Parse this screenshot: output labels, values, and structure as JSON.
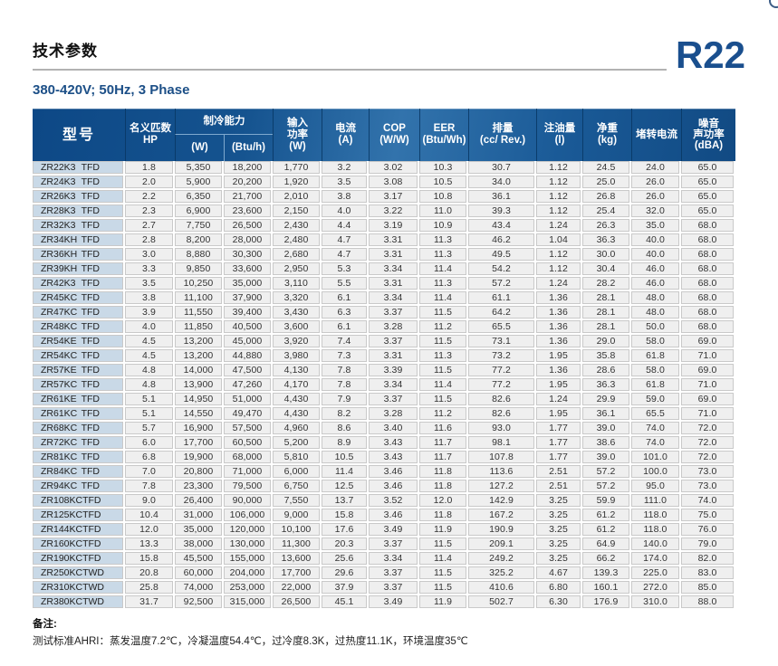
{
  "page": {
    "title": "技术参数",
    "refrigerant": "R22",
    "subtitle": "380-420V; 50Hz, 3 Phase"
  },
  "colors": {
    "header_blue": "#12518e",
    "accent_blue": "#1a4f8e",
    "model_column_bg": "#c9d9e7",
    "row_bg": "#efefef"
  },
  "table": {
    "headers": {
      "model": "型号",
      "hp_line1": "名义匹数",
      "hp_line2": "HP",
      "cooling_group": "制冷能力",
      "cooling_w": "(W)",
      "cooling_btuh": "(Btu/h)",
      "input_line1": "输入",
      "input_line2": "功率",
      "input_line3": "(W)",
      "current_line1": "电流",
      "current_line2": "(A)",
      "cop_line1": "COP",
      "cop_line2": "(W/W)",
      "eer_line1": "EER",
      "eer_line2": "(Btu/Wh)",
      "displacement_line1": "排量",
      "displacement_line2": "(cc/ Rev.)",
      "oil_line1": "注油量",
      "oil_line2": "(l)",
      "weight_line1": "净重",
      "weight_line2": "(kg)",
      "locked_rotor": "堵转电流",
      "noise_line1": "噪音",
      "noise_line2": "声功率",
      "noise_line3": "(dBA)"
    },
    "rows": [
      {
        "model": "ZR22K3",
        "type": "TFD",
        "values": [
          "1.8",
          "5,350",
          "18,200",
          "1,770",
          "3.2",
          "3.02",
          "10.3",
          "30.7",
          "1.12",
          "24.5",
          "24.0",
          "65.0"
        ]
      },
      {
        "model": "ZR24K3",
        "type": "TFD",
        "values": [
          "2.0",
          "5,900",
          "20,200",
          "1,920",
          "3.5",
          "3.08",
          "10.5",
          "34.0",
          "1.12",
          "25.0",
          "26.0",
          "65.0"
        ]
      },
      {
        "model": "ZR26K3",
        "type": "TFD",
        "values": [
          "2.2",
          "6,350",
          "21,700",
          "2,010",
          "3.8",
          "3.17",
          "10.8",
          "36.1",
          "1.12",
          "26.8",
          "26.0",
          "65.0"
        ]
      },
      {
        "model": "ZR28K3",
        "type": "TFD",
        "values": [
          "2.3",
          "6,900",
          "23,600",
          "2,150",
          "4.0",
          "3.22",
          "11.0",
          "39.3",
          "1.12",
          "25.4",
          "32.0",
          "65.0"
        ]
      },
      {
        "model": "ZR32K3",
        "type": "TFD",
        "values": [
          "2.7",
          "7,750",
          "26,500",
          "2,430",
          "4.4",
          "3.19",
          "10.9",
          "43.4",
          "1.24",
          "26.3",
          "35.0",
          "68.0"
        ]
      },
      {
        "model": "ZR34KH",
        "type": "TFD",
        "values": [
          "2.8",
          "8,200",
          "28,000",
          "2,480",
          "4.7",
          "3.31",
          "11.3",
          "46.2",
          "1.04",
          "36.3",
          "40.0",
          "68.0"
        ]
      },
      {
        "model": "ZR36KH",
        "type": "TFD",
        "values": [
          "3.0",
          "8,880",
          "30,300",
          "2,680",
          "4.7",
          "3.31",
          "11.3",
          "49.5",
          "1.12",
          "30.0",
          "40.0",
          "68.0"
        ]
      },
      {
        "model": "ZR39KH",
        "type": "TFD",
        "values": [
          "3.3",
          "9,850",
          "33,600",
          "2,950",
          "5.3",
          "3.34",
          "11.4",
          "54.2",
          "1.12",
          "30.4",
          "46.0",
          "68.0"
        ]
      },
      {
        "model": "ZR42K3",
        "type": "TFD",
        "values": [
          "3.5",
          "10,250",
          "35,000",
          "3,110",
          "5.5",
          "3.31",
          "11.3",
          "57.2",
          "1.24",
          "28.2",
          "46.0",
          "68.0"
        ]
      },
      {
        "model": "ZR45KC",
        "type": "TFD",
        "values": [
          "3.8",
          "11,100",
          "37,900",
          "3,320",
          "6.1",
          "3.34",
          "11.4",
          "61.1",
          "1.36",
          "28.1",
          "48.0",
          "68.0"
        ]
      },
      {
        "model": "ZR47KC",
        "type": "TFD",
        "values": [
          "3.9",
          "11,550",
          "39,400",
          "3,430",
          "6.3",
          "3.37",
          "11.5",
          "64.2",
          "1.36",
          "28.1",
          "48.0",
          "68.0"
        ]
      },
      {
        "model": "ZR48KC",
        "type": "TFD",
        "values": [
          "4.0",
          "11,850",
          "40,500",
          "3,600",
          "6.1",
          "3.28",
          "11.2",
          "65.5",
          "1.36",
          "28.1",
          "50.0",
          "68.0"
        ]
      },
      {
        "model": "ZR54KE",
        "type": "TFD",
        "values": [
          "4.5",
          "13,200",
          "45,000",
          "3,920",
          "7.4",
          "3.37",
          "11.5",
          "73.1",
          "1.36",
          "29.0",
          "58.0",
          "69.0"
        ]
      },
      {
        "model": "ZR54KC",
        "type": "TFD",
        "values": [
          "4.5",
          "13,200",
          "44,880",
          "3,980",
          "7.3",
          "3.31",
          "11.3",
          "73.2",
          "1.95",
          "35.8",
          "61.8",
          "71.0"
        ]
      },
      {
        "model": "ZR57KE",
        "type": "TFD",
        "values": [
          "4.8",
          "14,000",
          "47,500",
          "4,130",
          "7.8",
          "3.39",
          "11.5",
          "77.2",
          "1.36",
          "28.6",
          "58.0",
          "69.0"
        ]
      },
      {
        "model": "ZR57KC",
        "type": "TFD",
        "values": [
          "4.8",
          "13,900",
          "47,260",
          "4,170",
          "7.8",
          "3.34",
          "11.4",
          "77.2",
          "1.95",
          "36.3",
          "61.8",
          "71.0"
        ]
      },
      {
        "model": "ZR61KE",
        "type": "TFD",
        "values": [
          "5.1",
          "14,950",
          "51,000",
          "4,430",
          "7.9",
          "3.37",
          "11.5",
          "82.6",
          "1.24",
          "29.9",
          "59.0",
          "69.0"
        ]
      },
      {
        "model": "ZR61KC",
        "type": "TFD",
        "values": [
          "5.1",
          "14,550",
          "49,470",
          "4,430",
          "8.2",
          "3.28",
          "11.2",
          "82.6",
          "1.95",
          "36.1",
          "65.5",
          "71.0"
        ]
      },
      {
        "model": "ZR68KC",
        "type": "TFD",
        "values": [
          "5.7",
          "16,900",
          "57,500",
          "4,960",
          "8.6",
          "3.40",
          "11.6",
          "93.0",
          "1.77",
          "39.0",
          "74.0",
          "72.0"
        ]
      },
      {
        "model": "ZR72KC",
        "type": "TFD",
        "values": [
          "6.0",
          "17,700",
          "60,500",
          "5,200",
          "8.9",
          "3.43",
          "11.7",
          "98.1",
          "1.77",
          "38.6",
          "74.0",
          "72.0"
        ]
      },
      {
        "model": "ZR81KC",
        "type": "TFD",
        "values": [
          "6.8",
          "19,900",
          "68,000",
          "5,810",
          "10.5",
          "3.43",
          "11.7",
          "107.8",
          "1.77",
          "39.0",
          "101.0",
          "72.0"
        ]
      },
      {
        "model": "ZR84KC",
        "type": "TFD",
        "values": [
          "7.0",
          "20,800",
          "71,000",
          "6,000",
          "11.4",
          "3.46",
          "11.8",
          "113.6",
          "2.51",
          "57.2",
          "100.0",
          "73.0"
        ]
      },
      {
        "model": "ZR94KC",
        "type": "TFD",
        "values": [
          "7.8",
          "23,300",
          "79,500",
          "6,750",
          "12.5",
          "3.46",
          "11.8",
          "127.2",
          "2.51",
          "57.2",
          "95.0",
          "73.0"
        ]
      },
      {
        "model": "ZR108KC",
        "type": "TFD",
        "values": [
          "9.0",
          "26,400",
          "90,000",
          "7,550",
          "13.7",
          "3.52",
          "12.0",
          "142.9",
          "3.25",
          "59.9",
          "111.0",
          "74.0"
        ]
      },
      {
        "model": "ZR125KC",
        "type": "TFD",
        "values": [
          "10.4",
          "31,000",
          "106,000",
          "9,000",
          "15.8",
          "3.46",
          "11.8",
          "167.2",
          "3.25",
          "61.2",
          "118.0",
          "75.0"
        ]
      },
      {
        "model": "ZR144KC",
        "type": "TFD",
        "values": [
          "12.0",
          "35,000",
          "120,000",
          "10,100",
          "17.6",
          "3.49",
          "11.9",
          "190.9",
          "3.25",
          "61.2",
          "118.0",
          "76.0"
        ]
      },
      {
        "model": "ZR160KC",
        "type": "TFD",
        "values": [
          "13.3",
          "38,000",
          "130,000",
          "11,300",
          "20.3",
          "3.37",
          "11.5",
          "209.1",
          "3.25",
          "64.9",
          "140.0",
          "79.0"
        ]
      },
      {
        "model": "ZR190KC",
        "type": "TFD",
        "values": [
          "15.8",
          "45,500",
          "155,000",
          "13,600",
          "25.6",
          "3.34",
          "11.4",
          "249.2",
          "3.25",
          "66.2",
          "174.0",
          "82.0"
        ]
      },
      {
        "model": "ZR250KC",
        "type": "TWD",
        "values": [
          "20.8",
          "60,000",
          "204,000",
          "17,700",
          "29.6",
          "3.37",
          "11.5",
          "325.2",
          "4.67",
          "139.3",
          "225.0",
          "83.0"
        ]
      },
      {
        "model": "ZR310KC",
        "type": "TWD",
        "values": [
          "25.8",
          "74,000",
          "253,000",
          "22,000",
          "37.9",
          "3.37",
          "11.5",
          "410.6",
          "6.80",
          "160.1",
          "272.0",
          "85.0"
        ]
      },
      {
        "model": "ZR380KC",
        "type": "TWD",
        "values": [
          "31.7",
          "92,500",
          "315,000",
          "26,500",
          "45.1",
          "3.49",
          "11.9",
          "502.7",
          "6.30",
          "176.9",
          "310.0",
          "88.0"
        ]
      }
    ]
  },
  "footer": {
    "remark_label": "备注:",
    "remark_text": "测试标准AHRI：蒸发温度7.2℃，冷凝温度54.4℃，过冷度8.3K，过热度11.1K，环境温度35℃"
  }
}
